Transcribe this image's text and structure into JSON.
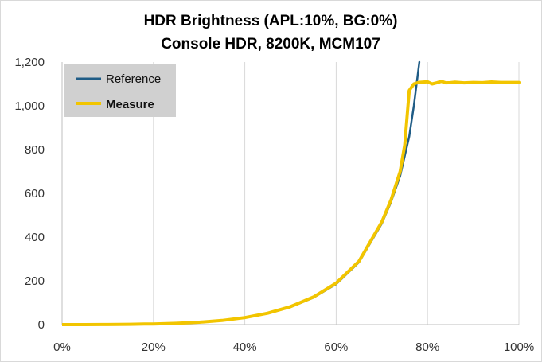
{
  "chart_data": {
    "type": "line",
    "title": "HDR Brightness (APL:10%, BG:0%)",
    "subtitle": "Console HDR, 8200K, MCM107",
    "xlabel": "",
    "ylabel": "",
    "xlim": [
      0,
      100
    ],
    "ylim": [
      0,
      1200
    ],
    "x_ticks": [
      "0%",
      "20%",
      "40%",
      "60%",
      "80%",
      "100%"
    ],
    "y_ticks": [
      "0",
      "200",
      "400",
      "600",
      "800",
      "1,000",
      "1,200"
    ],
    "grid": "vertical",
    "legend_position": "top-left",
    "series": [
      {
        "name": "Reference",
        "color": "#1f5c86",
        "x": [
          0,
          5,
          10,
          15,
          20,
          25,
          30,
          35,
          40,
          45,
          50,
          55,
          60,
          65,
          70,
          72,
          74,
          76,
          77,
          78.2
        ],
        "values": [
          0,
          0.1,
          0.4,
          1.3,
          3,
          6,
          11,
          19,
          32,
          51,
          80,
          123,
          185,
          285,
          462,
          560,
          680,
          860,
          1000,
          1200
        ]
      },
      {
        "name": "Measure",
        "color": "#f2c500",
        "x": [
          0,
          5,
          10,
          15,
          18,
          20,
          25,
          30,
          35,
          40,
          45,
          50,
          55,
          60,
          65,
          70,
          72,
          74,
          75,
          76,
          77,
          78,
          80,
          81,
          82,
          83,
          84,
          85,
          86,
          88,
          90,
          92,
          94,
          96,
          98,
          100
        ],
        "values": [
          0,
          0.1,
          0.4,
          1.3,
          3,
          3,
          6,
          11,
          19,
          32,
          52,
          82,
          126,
          190,
          290,
          470,
          570,
          700,
          820,
          1070,
          1100,
          1107,
          1110,
          1100,
          1105,
          1112,
          1105,
          1106,
          1108,
          1105,
          1107,
          1106,
          1109,
          1107,
          1107,
          1107
        ]
      }
    ]
  },
  "legend": {
    "reference_label": "Reference",
    "measure_label": "Measure"
  }
}
